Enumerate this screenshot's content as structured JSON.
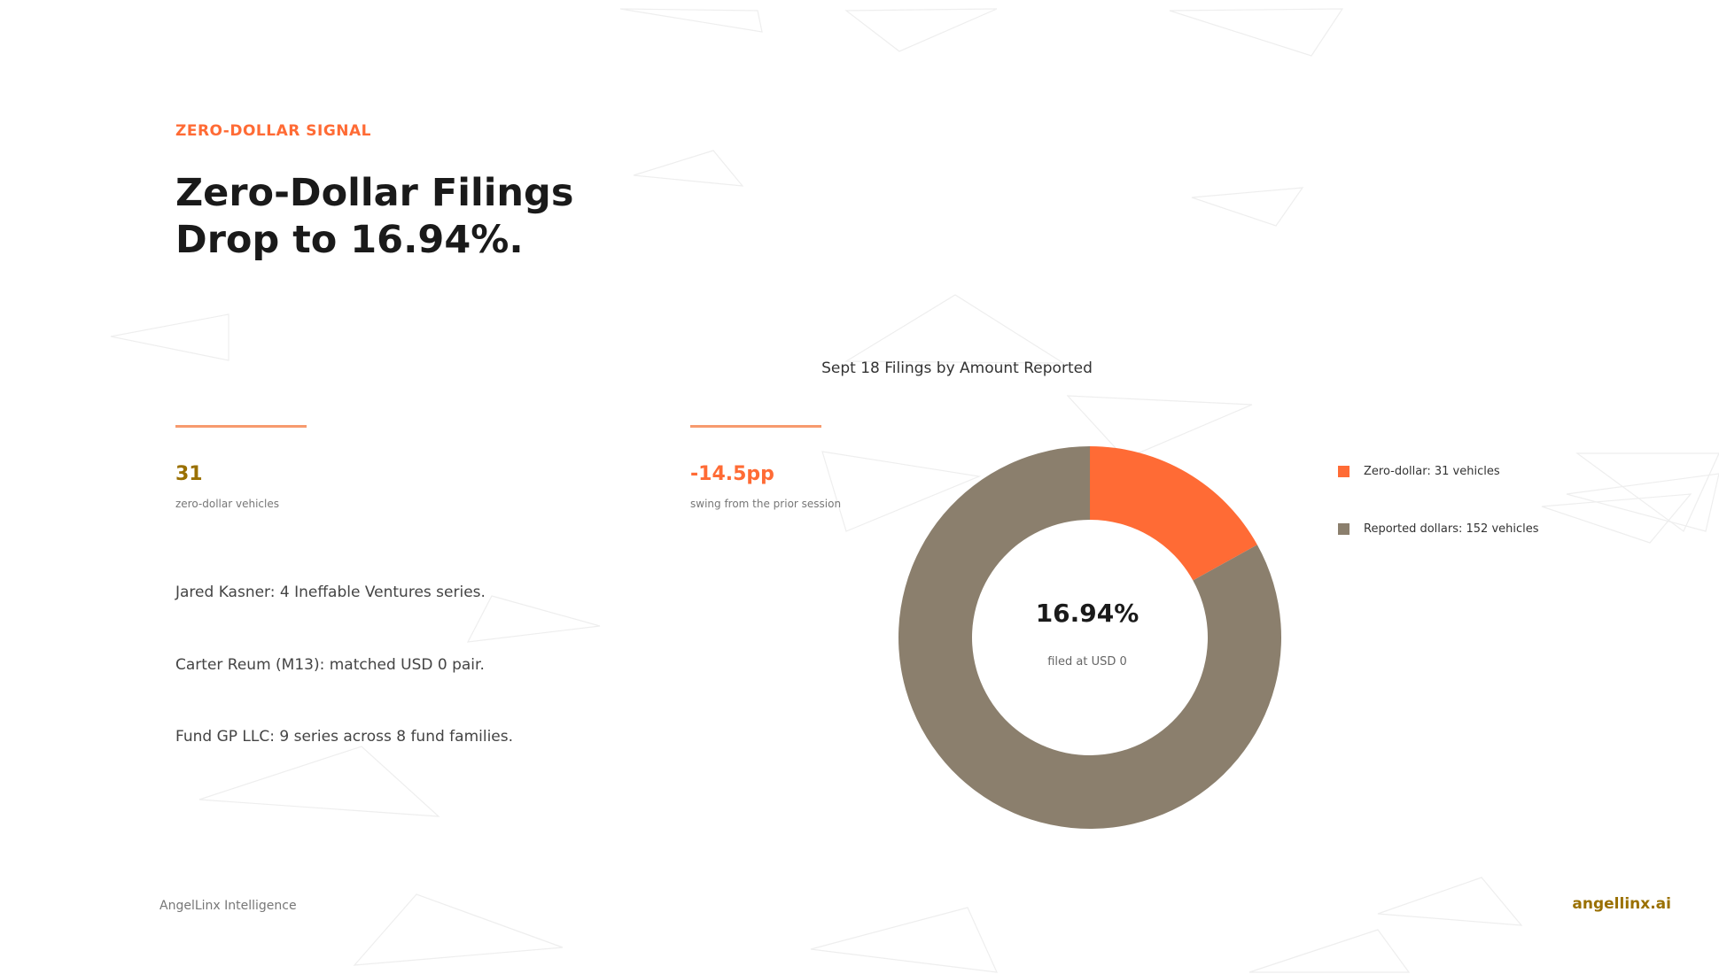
{
  "header": {
    "eyebrow": "ZERO-DOLLAR SIGNAL",
    "headline_line1": "Zero-Dollar Filings",
    "headline_line2": "Drop to 16.94%."
  },
  "stats": [
    {
      "value": "31",
      "label": "zero-dollar vehicles",
      "color": "#9a7000"
    },
    {
      "value": "-14.5pp",
      "label": "swing from the prior session",
      "color": "#ff6b35"
    }
  ],
  "facts": [
    "Jared Kasner: 4 Ineffable Ventures series.",
    "Carter Reum (M13): matched USD 0 pair.",
    "Fund GP LLC: 9 series across 8 fund families."
  ],
  "chart_data": {
    "type": "pie",
    "variant": "donut",
    "title": "Sept 18 Filings by Amount Reported",
    "center_value": "16.94%",
    "center_label": "filed at USD 0",
    "legend_position": "right",
    "slices": [
      {
        "label": "Zero-dollar: 31 vehicles",
        "value": 31,
        "color": "#ff6b35"
      },
      {
        "label": "Reported dollars: 152 vehicles",
        "value": 152,
        "color": "#8b7f6d"
      }
    ]
  },
  "footer": {
    "brand_left": "AngelLinx Intelligence",
    "brand_right": "angellinx.ai"
  },
  "colors": {
    "accent": "#ff6b35",
    "gold": "#9a7000",
    "taupe": "#8b7f6d"
  }
}
